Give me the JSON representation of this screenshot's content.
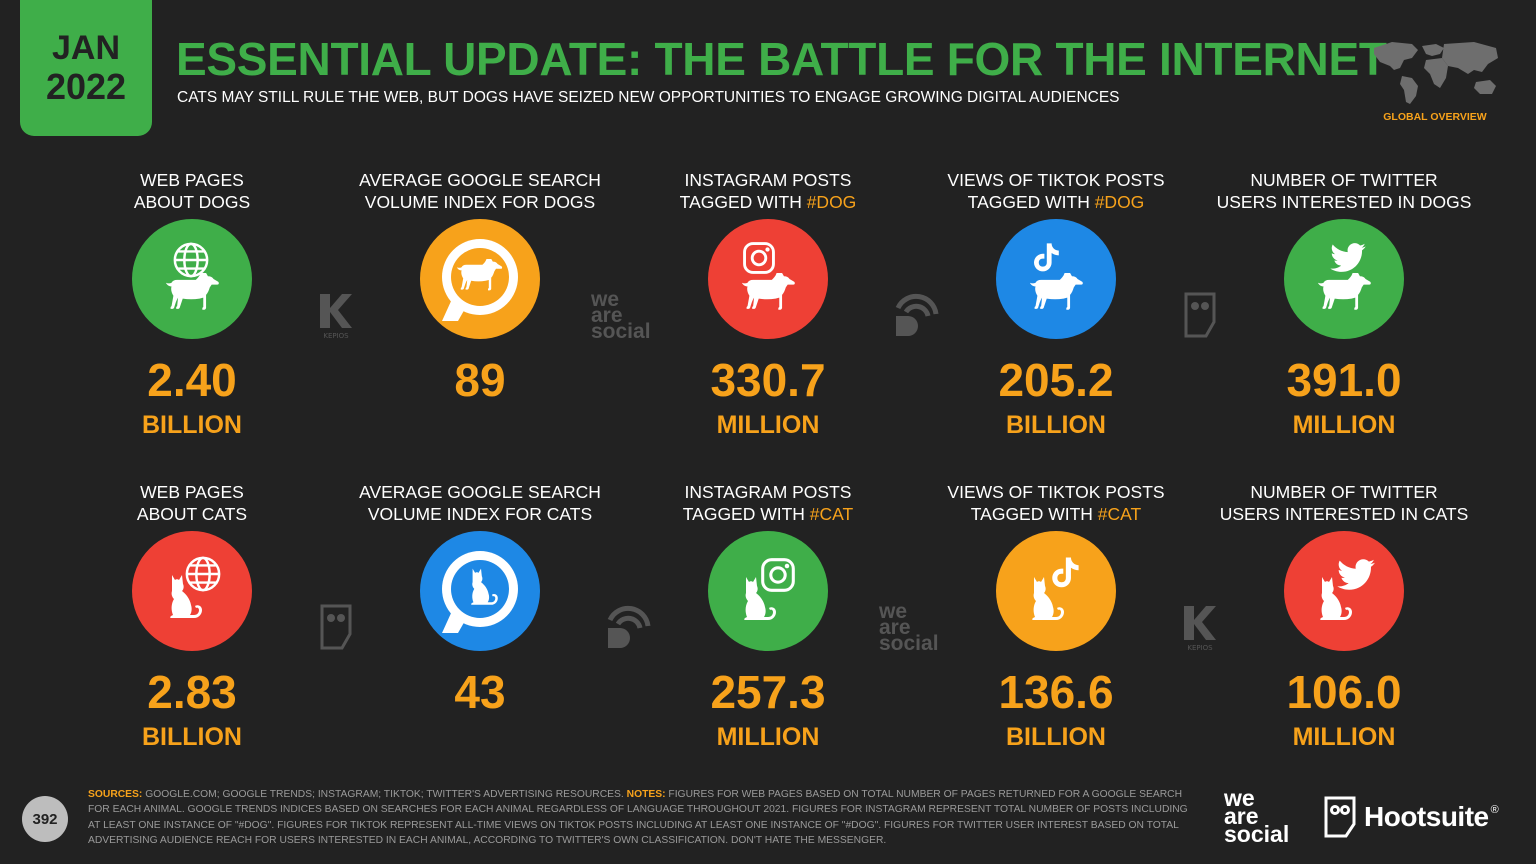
{
  "header": {
    "month": "JAN",
    "year": "2022",
    "title": "ESSENTIAL UPDATE: THE BATTLE FOR THE INTERNET",
    "subtitle": "CATS MAY STILL RULE THE WEB, BUT DOGS HAVE SEIZED NEW OPPORTUNITIES TO ENGAGE GROWING DIGITAL AUDIENCES",
    "section_label": "GLOBAL OVERVIEW"
  },
  "colors": {
    "green": "#3fae49",
    "orange": "#f7a21b",
    "red": "#ee4035",
    "blue": "#1e88e5",
    "background": "#222222"
  },
  "dogs": [
    {
      "label_line1": "WEB PAGES",
      "label_line2": "ABOUT DOGS",
      "value": "2.40",
      "unit": "BILLION",
      "icon": "globe-dog-icon",
      "circle": "green"
    },
    {
      "label_line1": "AVERAGE GOOGLE SEARCH",
      "label_line2": "VOLUME INDEX FOR DOGS",
      "value": "89",
      "unit": "",
      "icon": "search-dog-icon",
      "circle": "orange"
    },
    {
      "label_line1": "INSTAGRAM POSTS",
      "label_line2_pre": "TAGGED WITH ",
      "label_hashtag": "#DOG",
      "value": "330.7",
      "unit": "MILLION",
      "icon": "instagram-dog-icon",
      "circle": "red"
    },
    {
      "label_line1": "VIEWS OF TIKTOK POSTS",
      "label_line2_pre": "TAGGED WITH ",
      "label_hashtag": "#DOG",
      "value": "205.2",
      "unit": "BILLION",
      "icon": "tiktok-dog-icon",
      "circle": "blue"
    },
    {
      "label_line1": "NUMBER OF TWITTER",
      "label_line2": "USERS INTERESTED IN DOGS",
      "value": "391.0",
      "unit": "MILLION",
      "icon": "twitter-dog-icon",
      "circle": "green"
    }
  ],
  "cats": [
    {
      "label_line1": "WEB PAGES",
      "label_line2": "ABOUT CATS",
      "value": "2.83",
      "unit": "BILLION",
      "icon": "globe-cat-icon",
      "circle": "red"
    },
    {
      "label_line1": "AVERAGE GOOGLE SEARCH",
      "label_line2": "VOLUME INDEX FOR CATS",
      "value": "43",
      "unit": "",
      "icon": "search-cat-icon",
      "circle": "blue"
    },
    {
      "label_line1": "INSTAGRAM POSTS",
      "label_line2_pre": "TAGGED WITH ",
      "label_hashtag": "#CAT",
      "value": "257.3",
      "unit": "MILLION",
      "icon": "instagram-cat-icon",
      "circle": "green"
    },
    {
      "label_line1": "VIEWS OF TIKTOK POSTS",
      "label_line2_pre": "TAGGED WITH ",
      "label_hashtag": "#CAT",
      "value": "136.6",
      "unit": "BILLION",
      "icon": "tiktok-cat-icon",
      "circle": "orange"
    },
    {
      "label_line1": "NUMBER OF TWITTER",
      "label_line2": "USERS INTERESTED IN CATS",
      "value": "106.0",
      "unit": "MILLION",
      "icon": "twitter-cat-icon",
      "circle": "red"
    }
  ],
  "watermarks": {
    "kepios": "KEPIOS",
    "we_are_social_1": "we",
    "we_are_social_2": "are",
    "we_are_social_3": "social"
  },
  "footer": {
    "page_number": "392",
    "sources_key": "SOURCES:",
    "sources_text": " GOOGLE.COM; GOOGLE TRENDS; INSTAGRAM; TIKTOK; TWITTER'S ADVERTISING RESOURCES. ",
    "notes_key": "NOTES:",
    "notes_text": " FIGURES FOR WEB PAGES BASED ON TOTAL NUMBER OF PAGES RETURNED FOR A GOOGLE SEARCH FOR EACH ANIMAL. GOOGLE TRENDS INDICES BASED ON SEARCHES FOR EACH ANIMAL REGARDLESS OF LANGUAGE THROUGHOUT 2021. FIGURES FOR INSTAGRAM REPRESENT TOTAL NUMBER OF POSTS INCLUDING AT LEAST ONE INSTANCE OF \"#DOG\". FIGURES FOR TIKTOK REPRESENT ALL-TIME VIEWS ON TIKTOK POSTS INCLUDING AT LEAST ONE INSTANCE OF \"#DOG\". FIGURES FOR TWITTER USER INTEREST BASED ON TOTAL ADVERTISING AUDIENCE REACH FOR USERS INTERESTED IN EACH ANIMAL, ACCORDING TO TWITTER'S OWN CLASSIFICATION. DON'T HATE THE MESSENGER.",
    "we_are_social_1": "we",
    "we_are_social_2": "are",
    "we_are_social_3": "social",
    "hootsuite": "Hootsuite",
    "hootsuite_mark": "®"
  }
}
